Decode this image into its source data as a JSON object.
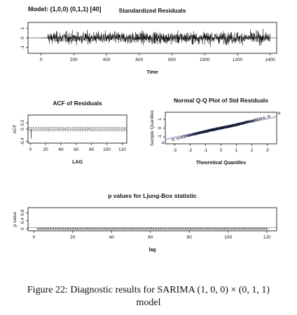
{
  "figure": {
    "model_label": "Model: (1,0,0) (0,1,1) [40]",
    "caption_line1": "Figure 22: Diagnostic results for SARIMA (1, 0, 0) × (0, 1, 1)",
    "caption_line2": "model"
  },
  "chart_data": [
    {
      "type": "line",
      "title": "Standardized Residuals",
      "xlabel": "Time",
      "ylabel": "",
      "xlim": [
        -80,
        1440
      ],
      "ylim": [
        -1.6,
        1.6
      ],
      "xticks": [
        0,
        200,
        400,
        600,
        800,
        1000,
        1200,
        1400
      ],
      "yticks": [
        -1,
        0,
        1
      ],
      "n": 1400,
      "flat_until": 40,
      "amplitude": 1.2,
      "zero_line": true
    },
    {
      "type": "bar",
      "title": "ACF of Residuals",
      "xlabel": "LAG",
      "ylabel": "ACF",
      "xlim": [
        -3,
        126
      ],
      "ylim": [
        -0.45,
        0.45
      ],
      "xticks": [
        0,
        20,
        40,
        60,
        80,
        100,
        120
      ],
      "yticks": [
        -0.4,
        0,
        0.2
      ],
      "lag1_value": -0.3,
      "conf_band": 0.053,
      "max_lag": 125
    },
    {
      "type": "scatter",
      "title": "Normal Q-Q Plot of Std Residuals",
      "xlabel": "Theoretical Quantiles",
      "ylabel": "Sample Quantiles",
      "xlim": [
        -3.6,
        3.6
      ],
      "ylim": [
        -1.8,
        1.8
      ],
      "xticks": [
        -3,
        -2,
        -1,
        0,
        1,
        2,
        3
      ],
      "yticks": [
        -1,
        0,
        1
      ],
      "fit_line": {
        "slope": 0.36,
        "intercept": 0
      }
    },
    {
      "type": "scatter",
      "title": "p values for Ljung-Box statistic",
      "xlabel": "lag",
      "ylabel": "p value",
      "xlim": [
        -3,
        125
      ],
      "ylim": [
        -0.1,
        1.05
      ],
      "xticks": [
        0,
        20,
        40,
        60,
        80,
        100,
        120
      ],
      "yticks": [
        0,
        0.4,
        0.8
      ],
      "first_lag": 2,
      "last_lag": 120,
      "p_value": 0,
      "ref_line": 0.05
    }
  ]
}
